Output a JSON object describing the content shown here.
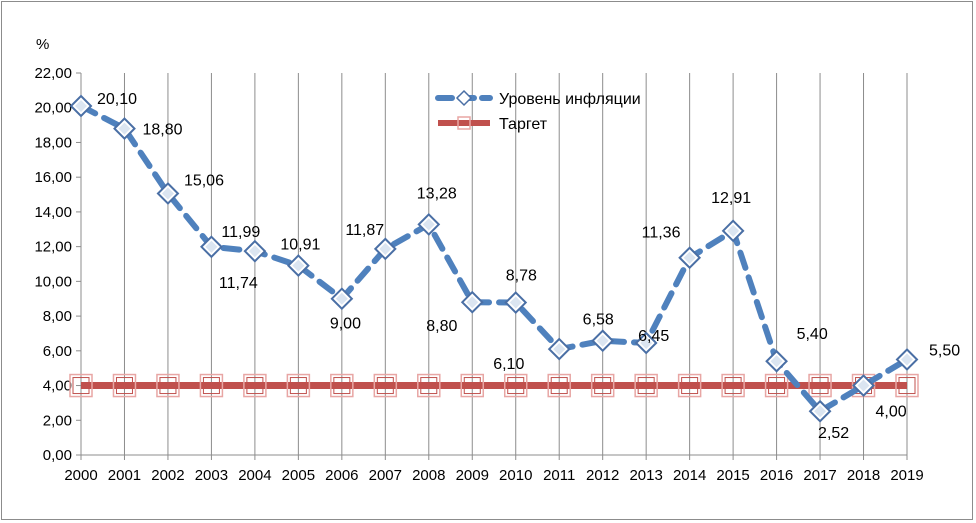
{
  "chart_data": {
    "type": "line",
    "ylabel": "%",
    "ylim": [
      0,
      22
    ],
    "ytick_step": 2,
    "ytick_labels": [
      "0,00",
      "2,00",
      "4,00",
      "6,00",
      "8,00",
      "10,00",
      "12,00",
      "14,00",
      "16,00",
      "18,00",
      "20,00",
      "22,00"
    ],
    "categories": [
      "2000",
      "2001",
      "2002",
      "2003",
      "2004",
      "2005",
      "2006",
      "2007",
      "2008",
      "2009",
      "2010",
      "2011",
      "2012",
      "2013",
      "2014",
      "2015",
      "2016",
      "2017",
      "2018",
      "2019"
    ],
    "grid": "vertical",
    "legend_position": "top-right",
    "series": [
      {
        "name": "Уровень инфляции",
        "color": "#4f81bd",
        "marker": "diamond",
        "line_style": "dashed",
        "values": [
          20.1,
          18.8,
          15.06,
          11.99,
          11.74,
          10.91,
          9.0,
          11.87,
          13.28,
          8.8,
          8.78,
          6.1,
          6.58,
          6.45,
          11.36,
          12.91,
          5.4,
          2.52,
          4.0,
          5.5
        ],
        "labels": [
          "20,10",
          "18,80",
          "15,06",
          "11,99",
          "11,74",
          "10,91",
          "9,00",
          "11,87",
          "13,28",
          "8,80",
          "8,78",
          "6,10",
          "6,58",
          "6,45",
          "11,36",
          "12,91",
          "5,40",
          "2,52",
          "4,00",
          "5,50"
        ]
      },
      {
        "name": "Таргет",
        "color": "#c0504d",
        "marker": "square",
        "line_style": "solid",
        "values": [
          4,
          4,
          4,
          4,
          4,
          4,
          4,
          4,
          4,
          4,
          4,
          4,
          4,
          4,
          4,
          4,
          4,
          4,
          4,
          4
        ]
      }
    ]
  }
}
